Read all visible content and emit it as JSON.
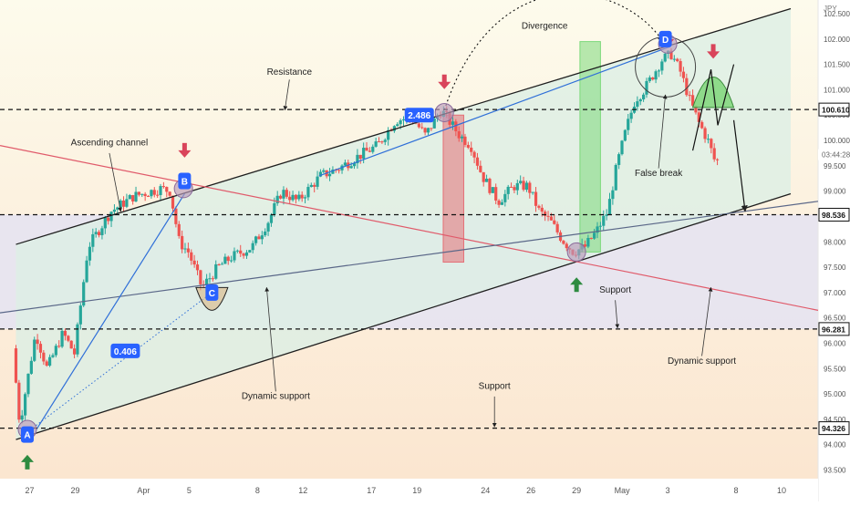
{
  "chart_data": {
    "type": "candlestick",
    "currency_label": "JPY",
    "y_ticks": [
      93.5,
      94.0,
      94.5,
      95.0,
      95.5,
      96.0,
      96.5,
      97.0,
      97.5,
      98.0,
      98.5,
      99.0,
      99.5,
      100.0,
      100.5,
      101.0,
      101.5,
      102.0,
      102.5
    ],
    "y_tick_labels": [
      "93.500",
      "94.000",
      "94.500",
      "95.000",
      "95.500",
      "96.000",
      "96.500",
      "97.000",
      "97.500",
      "98.000",
      "98.500",
      "99.000",
      "99.500",
      "100.000",
      "100.500",
      "101.000",
      "101.500",
      "102.000",
      "102.500"
    ],
    "x_ticks": [
      {
        "label": "27",
        "x": 0.6
      },
      {
        "label": "29",
        "x": 2.6
      },
      {
        "label": "Apr",
        "x": 5.6
      },
      {
        "label": "5",
        "x": 7.6
      },
      {
        "label": "8",
        "x": 10.6
      },
      {
        "label": "12",
        "x": 12.6
      },
      {
        "label": "17",
        "x": 15.6
      },
      {
        "label": "19",
        "x": 17.6
      },
      {
        "label": "24",
        "x": 20.6
      },
      {
        "label": "26",
        "x": 22.6
      },
      {
        "label": "29",
        "x": 24.6
      },
      {
        "label": "May",
        "x": 26.6
      },
      {
        "label": "3",
        "x": 28.6
      },
      {
        "label": "8",
        "x": 31.6
      },
      {
        "label": "10",
        "x": 33.6
      }
    ],
    "x_range": [
      -0.7,
      35.2
    ],
    "y_range": [
      93.33,
      102.77
    ],
    "price_labels": [
      {
        "text": "100.610",
        "value": 100.61,
        "style": "outline"
      },
      {
        "text": "03:44:28",
        "value": 99.72,
        "style": "clock"
      },
      {
        "text": "98.536",
        "value": 98.536,
        "style": "outline"
      },
      {
        "text": "96.281",
        "value": 96.281,
        "style": "outline"
      },
      {
        "text": "94.326",
        "value": 94.326,
        "style": "outline"
      }
    ],
    "horizontal_levels": [
      100.61,
      98.536,
      96.281,
      94.326
    ],
    "path": [
      [
        0,
        95.9
      ],
      [
        0.3,
        94.4
      ],
      [
        1.0,
        96.2
      ],
      [
        1.5,
        95.5
      ],
      [
        2.2,
        96.2
      ],
      [
        2.7,
        95.8
      ],
      [
        3.3,
        97.9
      ],
      [
        4.3,
        98.6
      ],
      [
        5.3,
        98.9
      ],
      [
        6.5,
        99.05
      ],
      [
        6.9,
        99.0
      ],
      [
        7.3,
        98.0
      ],
      [
        7.7,
        97.8
      ],
      [
        8.3,
        97.1
      ],
      [
        9.0,
        97.5
      ],
      [
        9.6,
        97.7
      ],
      [
        10.5,
        97.9
      ],
      [
        11.2,
        98.4
      ],
      [
        11.8,
        99.0
      ],
      [
        12.5,
        98.8
      ],
      [
        13.5,
        99.3
      ],
      [
        14.3,
        99.45
      ],
      [
        15.2,
        99.7
      ],
      [
        16.0,
        99.9
      ],
      [
        16.8,
        100.4
      ],
      [
        17.5,
        100.45
      ],
      [
        18.1,
        100.1
      ],
      [
        18.8,
        100.6
      ],
      [
        19.6,
        100.1
      ],
      [
        20.1,
        99.9
      ],
      [
        20.6,
        99.3
      ],
      [
        21.3,
        98.8
      ],
      [
        22.0,
        99.1
      ],
      [
        22.6,
        99.1
      ],
      [
        23.1,
        98.6
      ],
      [
        23.6,
        98.4
      ],
      [
        24.1,
        98.05
      ],
      [
        24.6,
        97.8
      ],
      [
        25.1,
        97.9
      ],
      [
        25.6,
        98.2
      ],
      [
        26.1,
        98.6
      ],
      [
        26.5,
        99.5
      ],
      [
        26.9,
        100.2
      ],
      [
        27.3,
        100.8
      ],
      [
        27.7,
        101.0
      ],
      [
        28.1,
        101.3
      ],
      [
        28.5,
        101.6
      ],
      [
        28.9,
        101.7
      ],
      [
        29.3,
        101.35
      ],
      [
        29.7,
        100.8
      ],
      [
        30.1,
        100.35
      ],
      [
        30.5,
        100.0
      ],
      [
        30.8,
        99.6
      ]
    ],
    "seed": 7,
    "channel": {
      "upper": [
        [
          0,
          97.95
        ],
        [
          34,
          102.6
        ]
      ],
      "lower": [
        [
          0,
          94.1
        ],
        [
          34,
          98.95
        ]
      ],
      "fill": "#dcefe5"
    },
    "lines": [
      {
        "name": "red-dynamic-support",
        "points": [
          [
            -0.7,
            99.9
          ],
          [
            35.2,
            96.65
          ]
        ],
        "color": "#e05a6a"
      },
      {
        "name": "navy-dynamic-support",
        "points": [
          [
            -0.7,
            96.6
          ],
          [
            35.2,
            98.8
          ]
        ],
        "color": "#5a6788"
      },
      {
        "name": "blue-trend-ab",
        "points": [
          [
            0.9,
            94.3
          ],
          [
            7.4,
            98.95
          ]
        ],
        "color": "#2f6fd8"
      },
      {
        "name": "blue-trend-bd",
        "points": [
          [
            13.3,
            99.3
          ],
          [
            28.7,
            101.85
          ]
        ],
        "color": "#2f6fd8"
      }
    ],
    "zones": [
      {
        "name": "red-zone",
        "x0": 18.75,
        "x1": 19.65,
        "y0": 97.6,
        "y1": 100.5,
        "color": "#e46f76"
      },
      {
        "name": "green-zone",
        "x0": 24.75,
        "x1": 25.65,
        "y0": 97.8,
        "y1": 101.95,
        "color": "#7bd97a"
      }
    ],
    "points": [
      {
        "label": "A",
        "x": 0.5,
        "y": 94.2
      },
      {
        "label": "B",
        "x": 7.4,
        "y": 99.2
      },
      {
        "label": "C",
        "x": 8.6,
        "y": 97.0
      },
      {
        "label": "D",
        "x": 28.5,
        "y": 102.0
      }
    ],
    "value_labels": [
      {
        "text": "2.486",
        "x": 17.7,
        "y": 100.5
      },
      {
        "text": "0.406",
        "x": 4.8,
        "y": 95.85
      }
    ],
    "annotations": [
      {
        "text": "Divergence",
        "x": 23.2,
        "y": 102.2
      },
      {
        "text": "Resistance",
        "x": 12.0,
        "y": 101.3
      },
      {
        "text": "Ascending channel",
        "x": 4.1,
        "y": 99.9
      },
      {
        "text": "False break",
        "x": 28.2,
        "y": 99.3
      },
      {
        "text": "Support",
        "x": 26.3,
        "y": 97.0
      },
      {
        "text": "Dynamic support",
        "x": 11.4,
        "y": 94.9
      },
      {
        "text": "Support",
        "x": 21.0,
        "y": 95.1
      },
      {
        "text": "Dynamic support",
        "x": 30.1,
        "y": 95.6
      }
    ]
  }
}
